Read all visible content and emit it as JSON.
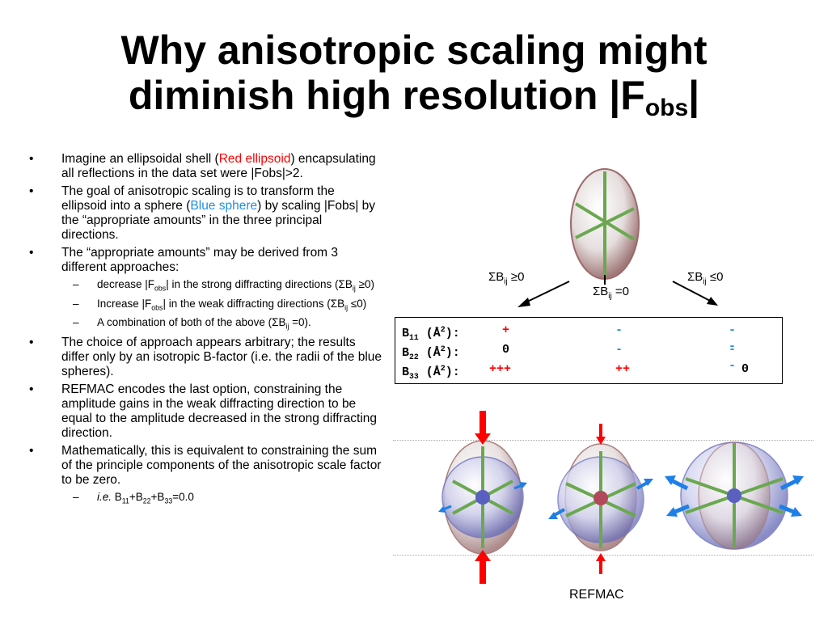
{
  "title": {
    "line1": "Why anisotropic scaling might",
    "line2_main": "diminish high resolution |F",
    "line2_sub": "obs",
    "line2_end": "|"
  },
  "bullets": {
    "b1": {
      "pre": "Imagine an ellipsoidal shell (",
      "hl": "Red ellipsoid",
      "post": ") encapsulating all reflections in the data set were |Fobs|>2."
    },
    "b2": {
      "pre": "The goal of anisotropic scaling is to transform the ellipsoid into a sphere (",
      "hl": "Blue sphere",
      "post": ") by scaling |Fobs| by the “appropriate amounts” in the three principal directions."
    },
    "b3": {
      "text": "The “appropriate amounts” may be derived from 3 different approaches:"
    },
    "s1": {
      "pre": "decrease |F",
      "sub": "obs",
      "mid": "| in the strong diffracting directions (ΣB",
      "sub2": "ij",
      "post": " ≥0)"
    },
    "s2": {
      "pre": "Increase |F",
      "sub": "obs",
      "mid": "| in the weak diffracting directions (ΣB",
      "sub2": "ij",
      "post": " ≤0)"
    },
    "s3": {
      "pre": "A combination of both of the above (ΣB",
      "sub": "ij",
      "post": " =0)."
    },
    "b4": {
      "text": "The choice of approach appears arbitrary; the results differ only by an isotropic B-factor (i.e. the radii of the blue spheres)."
    },
    "b5": {
      "text": "REFMAC encodes the last option, constraining the amplitude gains in the weak diffracting direction to be equal to the amplitude decreased in the strong diffracting direction."
    },
    "b6": {
      "text": "Mathematically, this is equivalent to constraining the sum of the principle components of the anisotropic scale factor to be zero."
    },
    "s4": {
      "ie": "i.e.",
      "t1": " B",
      "s1": "11",
      "t2": "+B",
      "s2": "22",
      "t3": "+B",
      "s3": "33",
      "t4": "=0.0"
    }
  },
  "labels": {
    "left": {
      "pre": "ΣB",
      "sub": "ij",
      "post": " ≥0"
    },
    "middle": {
      "pre": "ΣB",
      "sub": "ij",
      "post": " =0"
    },
    "right": {
      "pre": "ΣB",
      "sub": "ij",
      "post": " ≤0"
    }
  },
  "table": {
    "rows": [
      {
        "b": "B",
        "sub": "11",
        "unit": " (Å",
        "sup": "2",
        "close": "):",
        "c1": "+",
        "c2": "-",
        "c3": "--"
      },
      {
        "b": "B",
        "sub": "22",
        "unit": " (Å",
        "sup": "2",
        "close": "):",
        "c1": "0",
        "c2": "-",
        "c3": "--"
      },
      {
        "b": "B",
        "sub": "33",
        "unit": " (Å",
        "sup": "2",
        "close": "):",
        "c1": "+++",
        "c2": "++",
        "c3": "0"
      }
    ]
  },
  "caption": "REFMAC",
  "colors": {
    "red": "#ff0000",
    "blue": "#1e8fe0",
    "arrow_blue": "#1e7fe6",
    "green_axis": "#6aa84f"
  }
}
